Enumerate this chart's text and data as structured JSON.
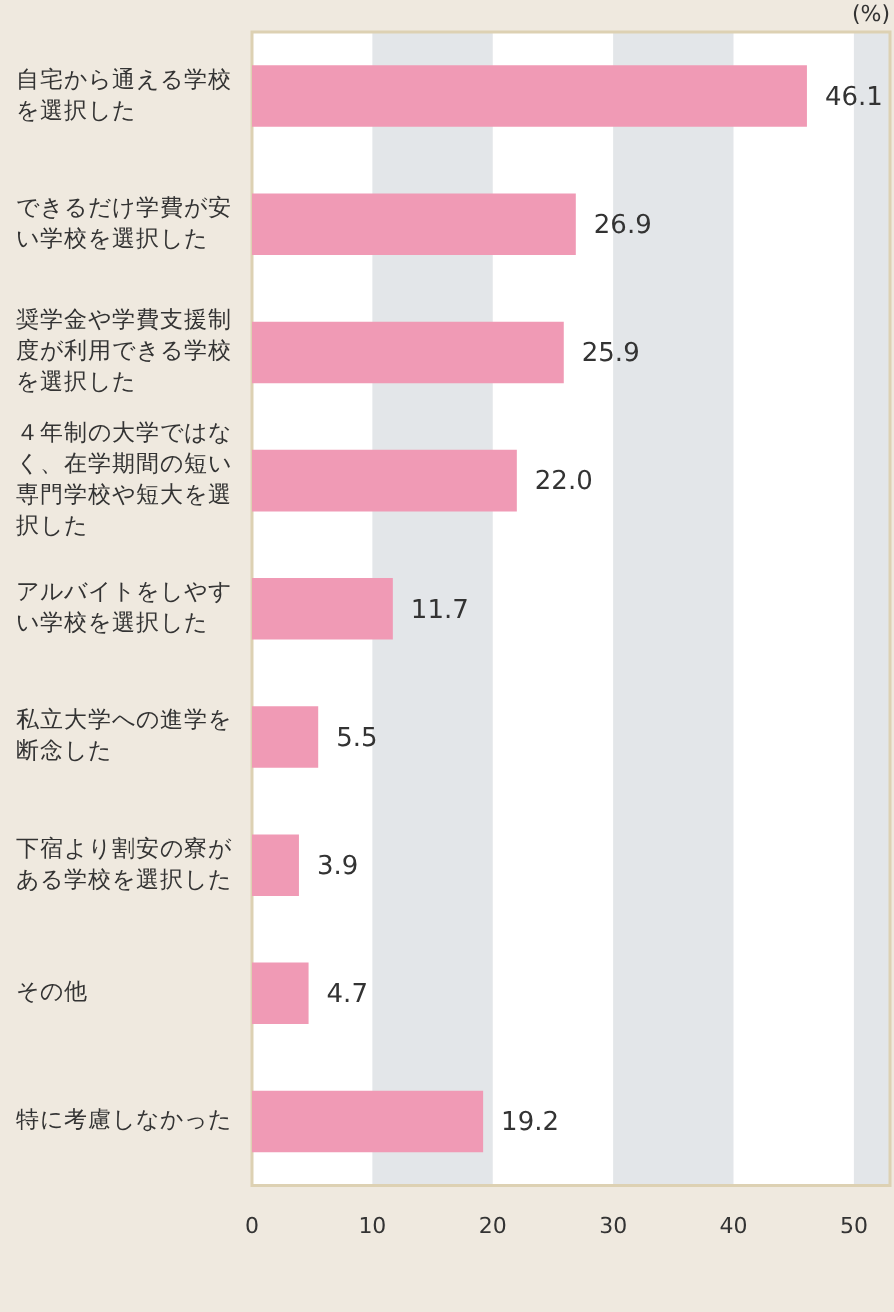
{
  "chart_data": {
    "type": "bar",
    "orientation": "horizontal",
    "xlabel": "(%)",
    "categories": [
      "自宅から通える学校を選択した",
      "できるだけ学費が安い学校を選択した",
      "奨学金や学費支援制度が利用できる学校を選択した",
      "４年制の大学ではなく、在学期間の短い専門学校や短大を選択した",
      "アルバイトをしやすい学校を選択した",
      "私立大学への進学を断念した",
      "下宿より割安の寮がある学校を選択した",
      "その他",
      "特に考慮しなかった"
    ],
    "values": [
      46.1,
      26.9,
      25.9,
      22.0,
      11.7,
      5.5,
      3.9,
      4.7,
      19.2
    ],
    "value_labels": [
      "46.1",
      "26.9",
      "25.9",
      "22.0",
      "11.7",
      "5.5",
      "3.9",
      "4.7",
      "19.2"
    ],
    "color": "#f09ab5",
    "xlim": [
      0,
      53
    ],
    "xticks": [
      0,
      10,
      20,
      30,
      40,
      50
    ],
    "bands": [
      {
        "axis": "x",
        "from": 10,
        "to": 20,
        "color": "#e3e6e9"
      },
      {
        "axis": "x",
        "from": 30,
        "to": 40,
        "color": "#e3e6e9"
      },
      {
        "axis": "x",
        "from": 50,
        "to": 53,
        "color": "#e3e6e9"
      }
    ]
  }
}
